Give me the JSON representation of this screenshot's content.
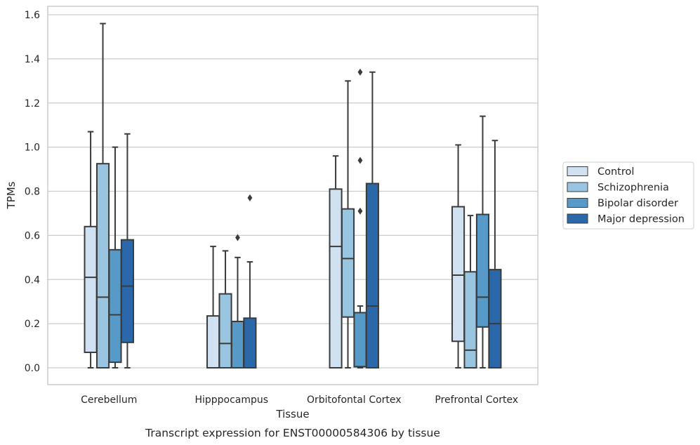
{
  "chart_data": {
    "type": "box",
    "caption": "Transcript expression for ENST00000584306 by tissue",
    "xlabel": "Tissue",
    "ylabel": "TPMs",
    "ylim": [
      -0.075,
      1.645
    ],
    "yticks": [
      "0.0",
      "0.2",
      "0.4",
      "0.6",
      "0.8",
      "1.0",
      "1.2",
      "1.4",
      "1.6"
    ],
    "ytick_values": [
      0.0,
      0.2,
      0.4,
      0.6,
      0.8,
      1.0,
      1.2,
      1.4,
      1.6
    ],
    "grid": true,
    "legend_position": "right",
    "categories": [
      "Cerebellum",
      "Hipppocampus",
      "Orbitofontal Cortex",
      "Prefrontal Cortex"
    ],
    "series": [
      {
        "name": "Control",
        "color": "#d0e1f2",
        "boxes": [
          {
            "whisker_low": 0.0,
            "q1": 0.07,
            "median": 0.41,
            "q3": 0.64,
            "whisker_high": 1.07,
            "outliers": []
          },
          {
            "whisker_low": 0.0,
            "q1": 0.0,
            "median": 0.0,
            "q3": 0.235,
            "whisker_high": 0.55,
            "outliers": []
          },
          {
            "whisker_low": 0.0,
            "q1": 0.0,
            "median": 0.55,
            "q3": 0.81,
            "whisker_high": 0.96,
            "outliers": []
          },
          {
            "whisker_low": 0.0,
            "q1": 0.12,
            "median": 0.42,
            "q3": 0.73,
            "whisker_high": 1.01,
            "outliers": []
          }
        ]
      },
      {
        "name": "Schizophrenia",
        "color": "#9ac5e0",
        "boxes": [
          {
            "whisker_low": 0.0,
            "q1": 0.0,
            "median": 0.32,
            "q3": 0.925,
            "whisker_high": 1.56,
            "outliers": []
          },
          {
            "whisker_low": 0.0,
            "q1": 0.0,
            "median": 0.11,
            "q3": 0.335,
            "whisker_high": 0.53,
            "outliers": []
          },
          {
            "whisker_low": 0.0,
            "q1": 0.23,
            "median": 0.495,
            "q3": 0.72,
            "whisker_high": 1.3,
            "outliers": []
          },
          {
            "whisker_low": 0.0,
            "q1": 0.0,
            "median": 0.08,
            "q3": 0.435,
            "whisker_high": 0.69,
            "outliers": []
          }
        ]
      },
      {
        "name": "Bipolar disorder",
        "color": "#5799c7",
        "boxes": [
          {
            "whisker_low": 0.0,
            "q1": 0.025,
            "median": 0.24,
            "q3": 0.535,
            "whisker_high": 1.0,
            "outliers": []
          },
          {
            "whisker_low": 0.0,
            "q1": 0.0,
            "median": 0.0,
            "q3": 0.21,
            "whisker_high": 0.5,
            "outliers": [
              0.59
            ]
          },
          {
            "whisker_low": 0.0,
            "q1": 0.005,
            "median": 0.005,
            "q3": 0.25,
            "whisker_high": 0.28,
            "outliers": [
              0.71,
              0.94,
              1.34
            ]
          },
          {
            "whisker_low": 0.0,
            "q1": 0.185,
            "median": 0.32,
            "q3": 0.695,
            "whisker_high": 1.14,
            "outliers": []
          }
        ]
      },
      {
        "name": "Major depression",
        "color": "#2a68a9",
        "boxes": [
          {
            "whisker_low": 0.0,
            "q1": 0.115,
            "median": 0.37,
            "q3": 0.58,
            "whisker_high": 1.06,
            "outliers": []
          },
          {
            "whisker_low": 0.0,
            "q1": 0.0,
            "median": 0.0,
            "q3": 0.225,
            "whisker_high": 0.48,
            "outliers": [
              0.77
            ]
          },
          {
            "whisker_low": 0.0,
            "q1": 0.0,
            "median": 0.28,
            "q3": 0.835,
            "whisker_high": 1.34,
            "outliers": []
          },
          {
            "whisker_low": 0.0,
            "q1": 0.0,
            "median": 0.2,
            "q3": 0.445,
            "whisker_high": 1.03,
            "outliers": []
          }
        ]
      }
    ]
  },
  "colors": {
    "box_edge": "#3b3b3b",
    "grid": "#cccccc",
    "frame": "#cccccc",
    "text": "#262626"
  }
}
